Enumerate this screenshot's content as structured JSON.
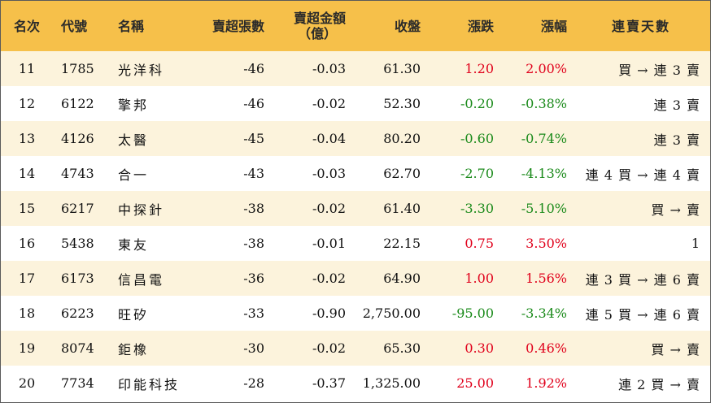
{
  "table": {
    "headers": {
      "rank": "名次",
      "code": "代號",
      "name": "名稱",
      "sell_shares": "賣超張數",
      "sell_amount_line1": "賣超金額",
      "sell_amount_line2": "（億）",
      "close": "收盤",
      "change": "漲跌",
      "change_pct": "漲幅",
      "streak": "連賣天數"
    },
    "rows": [
      {
        "rank": "11",
        "code": "1785",
        "name": "光洋科",
        "sell_shares": "-46",
        "sell_amount": "-0.03",
        "close": "61.30",
        "change": "1.20",
        "change_pct": "2.00%",
        "direction": "up",
        "streak": "買 → 連 3 賣"
      },
      {
        "rank": "12",
        "code": "6122",
        "name": "擎邦",
        "sell_shares": "-46",
        "sell_amount": "-0.02",
        "close": "52.30",
        "change": "-0.20",
        "change_pct": "-0.38%",
        "direction": "down",
        "streak": "連 3 賣"
      },
      {
        "rank": "13",
        "code": "4126",
        "name": "太醫",
        "sell_shares": "-45",
        "sell_amount": "-0.04",
        "close": "80.20",
        "change": "-0.60",
        "change_pct": "-0.74%",
        "direction": "down",
        "streak": "連 3 賣"
      },
      {
        "rank": "14",
        "code": "4743",
        "name": "合一",
        "sell_shares": "-43",
        "sell_amount": "-0.03",
        "close": "62.70",
        "change": "-2.70",
        "change_pct": "-4.13%",
        "direction": "down",
        "streak": "連 4 買 → 連 4 賣"
      },
      {
        "rank": "15",
        "code": "6217",
        "name": "中探針",
        "sell_shares": "-38",
        "sell_amount": "-0.02",
        "close": "61.40",
        "change": "-3.30",
        "change_pct": "-5.10%",
        "direction": "down",
        "streak": "買 → 賣"
      },
      {
        "rank": "16",
        "code": "5438",
        "name": "東友",
        "sell_shares": "-38",
        "sell_amount": "-0.01",
        "close": "22.15",
        "change": "0.75",
        "change_pct": "3.50%",
        "direction": "up",
        "streak": "1"
      },
      {
        "rank": "17",
        "code": "6173",
        "name": "信昌電",
        "sell_shares": "-36",
        "sell_amount": "-0.02",
        "close": "64.90",
        "change": "1.00",
        "change_pct": "1.56%",
        "direction": "up",
        "streak": "連 3 買 → 連 6 賣"
      },
      {
        "rank": "18",
        "code": "6223",
        "name": "旺矽",
        "sell_shares": "-33",
        "sell_amount": "-0.90",
        "close": "2,750.00",
        "change": "-95.00",
        "change_pct": "-3.34%",
        "direction": "down",
        "streak": "連 5 買 → 連 6 賣"
      },
      {
        "rank": "19",
        "code": "8074",
        "name": "鉅橡",
        "sell_shares": "-30",
        "sell_amount": "-0.02",
        "close": "65.30",
        "change": "0.30",
        "change_pct": "0.46%",
        "direction": "up",
        "streak": "買 → 賣"
      },
      {
        "rank": "20",
        "code": "7734",
        "name": "印能科技",
        "sell_shares": "-28",
        "sell_amount": "-0.37",
        "close": "1,325.00",
        "change": "25.00",
        "change_pct": "1.92%",
        "direction": "up",
        "streak": "連 2 買 → 賣"
      }
    ]
  },
  "colors": {
    "header_bg": "#f6c04a",
    "alt_row_bg": "#fcf3dc",
    "up": "#e0001b",
    "down": "#1a8a1a"
  }
}
